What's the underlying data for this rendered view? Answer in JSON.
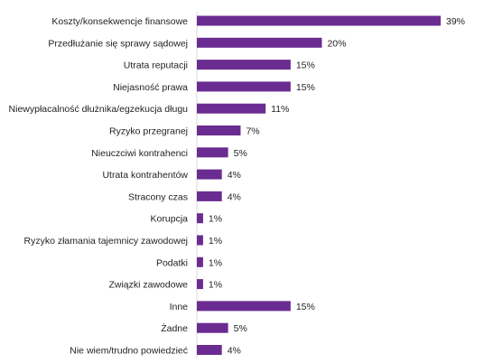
{
  "chart_data": {
    "type": "bar",
    "orientation": "horizontal",
    "title": "",
    "xlabel": "",
    "ylabel": "",
    "value_suffix": "%",
    "xlim": [
      0,
      39
    ],
    "grid": false,
    "legend": "none",
    "bar_color": "#6b2c91",
    "categories": [
      "Koszty/konsekwencje finansowe",
      "Przedłużanie się sprawy sądowej",
      "Utrata reputacji",
      "Niejasność prawa",
      "Niewypłacalność dłużnika/egzekucja długu",
      "Ryzyko przegranej",
      "Nieuczciwi kontrahenci",
      "Utrata kontrahentów",
      "Stracony czas",
      "Korupcja",
      "Ryzyko złamania tajemnicy zawodowej",
      "Podatki",
      "Związki zawodowe",
      "Inne",
      "Żadne",
      "Nie wiem/trudno powiedzieć"
    ],
    "values": [
      39,
      20,
      15,
      15,
      11,
      7,
      5,
      4,
      4,
      1,
      1,
      1,
      1,
      15,
      5,
      4
    ],
    "labels": [
      "39%",
      "20%",
      "15%",
      "15%",
      "11%",
      "7%",
      "5%",
      "4%",
      "4%",
      "1%",
      "1%",
      "1%",
      "1%",
      "15%",
      "5%",
      "4%"
    ]
  }
}
